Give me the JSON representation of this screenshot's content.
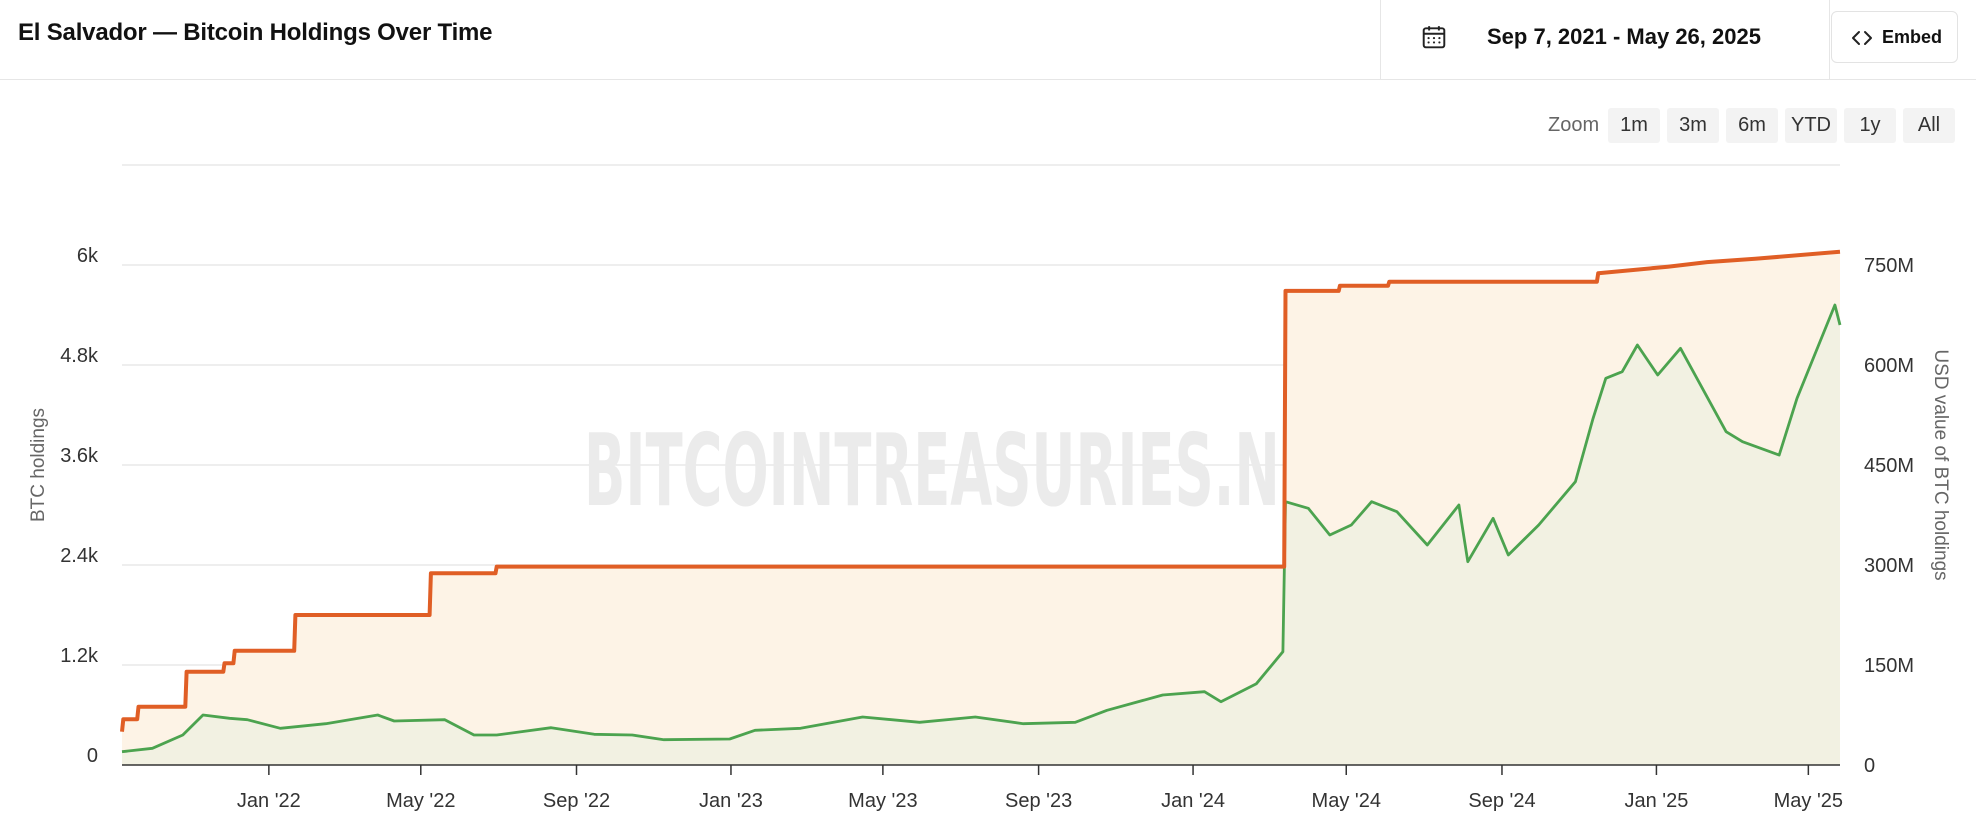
{
  "header": {
    "title": "El Salvador — Bitcoin Holdings Over Time",
    "date_range": "Sep 7, 2021 - May 26, 2025",
    "embed_label": "Embed",
    "calendar_icon": "calendar-icon",
    "embed_icon": "code-brackets-icon"
  },
  "zoom": {
    "label": "Zoom",
    "options": [
      "1m",
      "3m",
      "6m",
      "YTD",
      "1y",
      "All"
    ]
  },
  "watermark": "BITCOINTREASURIES.NET",
  "colors": {
    "btc_line": "#e05e25",
    "usd_line": "#4ca34f",
    "btc_fill": "#fdf3e6",
    "usd_fill": "#f2f1e2",
    "grid": "#e3e3e3"
  },
  "chart_data": {
    "type": "line",
    "title": "El Salvador — Bitcoin Holdings Over Time",
    "x_ticks": [
      "Jan '22",
      "May '22",
      "Sep '22",
      "Jan '23",
      "May '23",
      "Sep '23",
      "Jan '24",
      "May '24",
      "Sep '24",
      "Jan '25",
      "May '25"
    ],
    "x_range": [
      "2021-09-07",
      "2025-05-26"
    ],
    "y_left": {
      "label": "BTC holdings",
      "range": [
        0,
        7200
      ],
      "ticks": [
        "0",
        "1.2k",
        "2.4k",
        "3.6k",
        "4.8k",
        "6k"
      ]
    },
    "y_right": {
      "label": "USD value of BTC holdings",
      "range": [
        0,
        900000000
      ],
      "ticks": [
        "0",
        "150M",
        "300M",
        "450M",
        "600M",
        "750M"
      ]
    },
    "grid": true,
    "series": [
      {
        "axis": "left",
        "points": [
          [
            "2021-09-07",
            400
          ],
          [
            "2021-09-08",
            550
          ],
          [
            "2021-09-19",
            550
          ],
          [
            "2021-09-20",
            700
          ],
          [
            "2021-10-27",
            700
          ],
          [
            "2021-10-28",
            1120
          ],
          [
            "2021-11-26",
            1120
          ],
          [
            "2021-11-27",
            1220
          ],
          [
            "2021-12-04",
            1220
          ],
          [
            "2021-12-05",
            1370
          ],
          [
            "2022-01-21",
            1370
          ],
          [
            "2022-01-22",
            1800
          ],
          [
            "2022-05-08",
            1800
          ],
          [
            "2022-05-09",
            2301
          ],
          [
            "2022-06-29",
            2301
          ],
          [
            "2022-06-30",
            2381
          ],
          [
            "2024-03-13",
            2381
          ],
          [
            "2024-03-14",
            5689
          ],
          [
            "2024-04-25",
            5689
          ],
          [
            "2024-04-26",
            5750
          ],
          [
            "2024-06-03",
            5750
          ],
          [
            "2024-06-04",
            5800
          ],
          [
            "2024-11-15",
            5800
          ],
          [
            "2024-11-16",
            5900
          ],
          [
            "2025-01-10",
            5980
          ],
          [
            "2025-02-10",
            6035
          ],
          [
            "2025-03-20",
            6075
          ],
          [
            "2025-05-26",
            6160
          ]
        ]
      },
      {
        "axis": "right",
        "points": [
          [
            "2021-09-07",
            20000000
          ],
          [
            "2021-10-01",
            25000000
          ],
          [
            "2021-10-25",
            45000000
          ],
          [
            "2021-11-10",
            75000000
          ],
          [
            "2021-12-01",
            70000000
          ],
          [
            "2021-12-15",
            68000000
          ],
          [
            "2022-01-10",
            55000000
          ],
          [
            "2022-02-15",
            62000000
          ],
          [
            "2022-03-28",
            75000000
          ],
          [
            "2022-04-10",
            66000000
          ],
          [
            "2022-05-20",
            68000000
          ],
          [
            "2022-06-12",
            45000000
          ],
          [
            "2022-06-30",
            45000000
          ],
          [
            "2022-08-12",
            56000000
          ],
          [
            "2022-09-15",
            46000000
          ],
          [
            "2022-10-15",
            45000000
          ],
          [
            "2022-11-09",
            38000000
          ],
          [
            "2022-12-31",
            39000000
          ],
          [
            "2023-01-20",
            52000000
          ],
          [
            "2023-02-25",
            55000000
          ],
          [
            "2023-04-15",
            72000000
          ],
          [
            "2023-05-30",
            64000000
          ],
          [
            "2023-07-13",
            72000000
          ],
          [
            "2023-08-20",
            62000000
          ],
          [
            "2023-09-30",
            64000000
          ],
          [
            "2023-10-25",
            82000000
          ],
          [
            "2023-12-08",
            105000000
          ],
          [
            "2024-01-10",
            110000000
          ],
          [
            "2024-01-23",
            95000000
          ],
          [
            "2024-02-20",
            122000000
          ],
          [
            "2024-03-12",
            170000000
          ],
          [
            "2024-03-14",
            395000000
          ],
          [
            "2024-04-01",
            385000000
          ],
          [
            "2024-04-18",
            345000000
          ],
          [
            "2024-05-05",
            360000000
          ],
          [
            "2024-05-21",
            395000000
          ],
          [
            "2024-06-10",
            380000000
          ],
          [
            "2024-07-04",
            330000000
          ],
          [
            "2024-07-29",
            390000000
          ],
          [
            "2024-08-05",
            305000000
          ],
          [
            "2024-08-25",
            370000000
          ],
          [
            "2024-09-06",
            315000000
          ],
          [
            "2024-09-30",
            360000000
          ],
          [
            "2024-10-29",
            425000000
          ],
          [
            "2024-11-12",
            520000000
          ],
          [
            "2024-11-22",
            580000000
          ],
          [
            "2024-12-05",
            590000000
          ],
          [
            "2024-12-17",
            630000000
          ],
          [
            "2025-01-02",
            585000000
          ],
          [
            "2025-01-20",
            625000000
          ],
          [
            "2025-02-25",
            500000000
          ],
          [
            "2025-03-10",
            485000000
          ],
          [
            "2025-04-08",
            465000000
          ],
          [
            "2025-04-22",
            550000000
          ],
          [
            "2025-05-22",
            690000000
          ],
          [
            "2025-05-26",
            660000000
          ]
        ]
      }
    ]
  }
}
